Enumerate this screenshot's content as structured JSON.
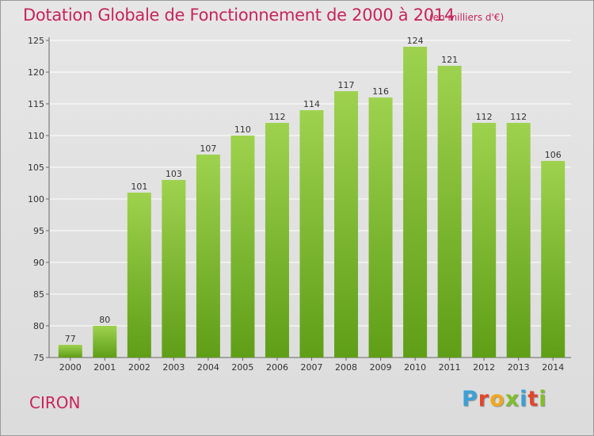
{
  "title": "Dotation Globale de Fonctionnement de 2000 à 2014",
  "subtitle": "(en milliers d'€)",
  "commune": "CIRON",
  "logo_text": "Proxiti",
  "logo_colors": [
    "#3aa0d8",
    "#e0472a",
    "#f2a81d",
    "#7fbf2a",
    "#3aa0d8",
    "#e0472a",
    "#7fbf2a"
  ],
  "colors": {
    "bar_light": "#9ed24e",
    "bar_dark": "#5f9e17",
    "title": "#c8245c",
    "grid": "#ffffff"
  },
  "chart_data": {
    "type": "bar",
    "categories": [
      "2000",
      "2001",
      "2002",
      "2003",
      "2004",
      "2005",
      "2006",
      "2007",
      "2008",
      "2009",
      "2010",
      "2011",
      "2012",
      "2013",
      "2014"
    ],
    "values": [
      77,
      80,
      101,
      103,
      107,
      110,
      112,
      114,
      117,
      116,
      124,
      121,
      112,
      112,
      106
    ],
    "data_labels": [
      "77",
      "80",
      "101",
      "103",
      "107",
      "110",
      "112",
      "114",
      "117",
      "116",
      "124",
      "121",
      "112",
      "112",
      "106"
    ],
    "yticks": [
      "75",
      "80",
      "85",
      "90",
      "95",
      "100",
      "105",
      "110",
      "115",
      "120",
      "125"
    ],
    "ylim": [
      75,
      125
    ],
    "grid": true,
    "legend": "none"
  }
}
